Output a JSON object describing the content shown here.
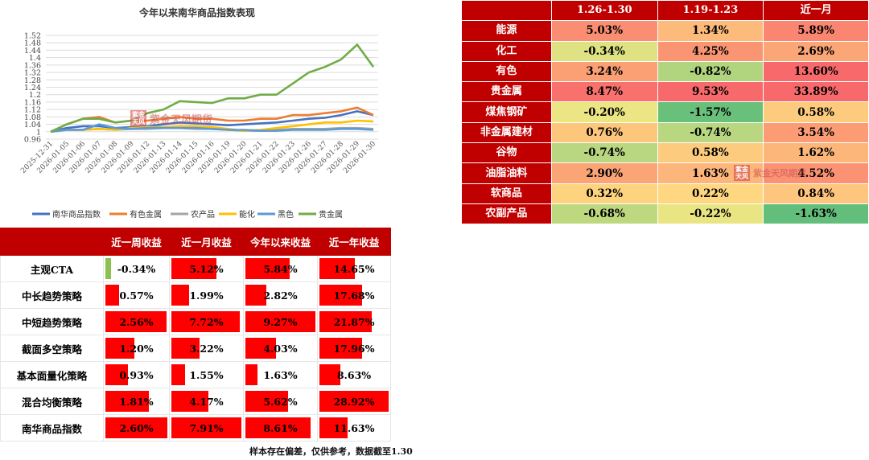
{
  "chart_data": [
    {
      "type": "line",
      "title": "今年以来南华商品指数表现",
      "x": [
        "2025-12-31",
        "2026-01-05",
        "2026-01-06",
        "2026-01-07",
        "2026-01-08",
        "2026-01-09",
        "2026-01-12",
        "2026-01-13",
        "2026-01-14",
        "2026-01-15",
        "2026-01-16",
        "2026-01-19",
        "2026-01-20",
        "2026-01-21",
        "2026-01-22",
        "2026-01-23",
        "2026-01-26",
        "2026-01-27",
        "2026-01-28",
        "2026-01-29",
        "2026-01-30"
      ],
      "yticks": [
        "0.96",
        "1",
        "1.04",
        "1.08",
        "1.12",
        "1.16",
        "1.2",
        "1.24",
        "1.28",
        "1.32",
        "1.36",
        "1.4",
        "1.44",
        "1.48",
        "1.52"
      ],
      "ylim": [
        0.96,
        1.52
      ],
      "grid": true,
      "legend_position": "bottom",
      "series": [
        {
          "name": "南华商品指数",
          "color": "#4472c4",
          "values": [
            1.0,
            1.02,
            1.03,
            1.03,
            1.02,
            1.025,
            1.03,
            1.04,
            1.05,
            1.045,
            1.04,
            1.035,
            1.04,
            1.045,
            1.05,
            1.06,
            1.07,
            1.075,
            1.09,
            1.11,
            1.09
          ]
        },
        {
          "name": "有色金属",
          "color": "#ed7d31",
          "values": [
            1.0,
            1.04,
            1.07,
            1.08,
            1.05,
            1.06,
            1.06,
            1.07,
            1.08,
            1.07,
            1.07,
            1.06,
            1.06,
            1.07,
            1.07,
            1.09,
            1.09,
            1.1,
            1.11,
            1.13,
            1.09
          ]
        },
        {
          "name": "农产品",
          "color": "#a5a5a5",
          "values": [
            1.0,
            1.01,
            1.01,
            1.015,
            1.01,
            1.015,
            1.015,
            1.02,
            1.02,
            1.015,
            1.015,
            1.01,
            1.005,
            1.005,
            1.01,
            1.015,
            1.015,
            1.015,
            1.02,
            1.02,
            1.015
          ]
        },
        {
          "name": "能化",
          "color": "#ffc000",
          "values": [
            1.0,
            1.01,
            1.01,
            1.015,
            1.01,
            1.02,
            1.025,
            1.025,
            1.03,
            1.03,
            1.025,
            1.015,
            1.005,
            1.01,
            1.02,
            1.03,
            1.04,
            1.05,
            1.05,
            1.06,
            1.055
          ]
        },
        {
          "name": "黑色",
          "color": "#5b9bd5",
          "values": [
            1.0,
            1.01,
            1.01,
            1.04,
            1.02,
            1.015,
            1.02,
            1.02,
            1.02,
            1.02,
            1.015,
            1.01,
            1.01,
            1.005,
            1.005,
            1.01,
            1.01,
            1.01,
            1.015,
            1.015,
            1.01
          ]
        },
        {
          "name": "贵金属",
          "color": "#70ad47",
          "values": [
            1.0,
            1.04,
            1.07,
            1.07,
            1.05,
            1.06,
            1.1,
            1.12,
            1.165,
            1.16,
            1.155,
            1.18,
            1.18,
            1.2,
            1.2,
            1.26,
            1.32,
            1.35,
            1.39,
            1.47,
            1.35
          ]
        }
      ]
    },
    {
      "type": "heatmap",
      "columns": [
        "",
        "1.26-1.30",
        "1.19-1.23",
        "近一月"
      ],
      "rows": [
        {
          "label": "能源",
          "values": [
            "5.03%",
            "1.34%",
            "5.89%"
          ],
          "numbers": [
            5.03,
            1.34,
            5.89
          ]
        },
        {
          "label": "化工",
          "values": [
            "-0.34%",
            "4.25%",
            "2.69%"
          ],
          "numbers": [
            -0.34,
            4.25,
            2.69
          ]
        },
        {
          "label": "有色",
          "values": [
            "3.24%",
            "-0.82%",
            "13.60%"
          ],
          "numbers": [
            3.24,
            -0.82,
            13.6
          ]
        },
        {
          "label": "贵金属",
          "values": [
            "8.47%",
            "9.53%",
            "33.89%"
          ],
          "numbers": [
            8.47,
            9.53,
            33.89
          ]
        },
        {
          "label": "煤焦钢矿",
          "values": [
            "-0.20%",
            "-1.57%",
            "0.58%"
          ],
          "numbers": [
            -0.2,
            -1.57,
            0.58
          ]
        },
        {
          "label": "非金属建材",
          "values": [
            "0.76%",
            "-0.74%",
            "3.54%"
          ],
          "numbers": [
            0.76,
            -0.74,
            3.54
          ]
        },
        {
          "label": "谷物",
          "values": [
            "-0.74%",
            "0.58%",
            "1.62%"
          ],
          "numbers": [
            -0.74,
            0.58,
            1.62
          ]
        },
        {
          "label": "油脂油料",
          "values": [
            "2.90%",
            "1.63%",
            "4.52%"
          ],
          "numbers": [
            2.9,
            1.63,
            4.52
          ]
        },
        {
          "label": "软商品",
          "values": [
            "0.32%",
            "0.22%",
            "0.84%"
          ],
          "numbers": [
            0.32,
            0.22,
            0.84
          ]
        },
        {
          "label": "农副产品",
          "values": [
            "-0.68%",
            "-0.22%",
            "-1.63%"
          ],
          "numbers": [
            -0.68,
            -0.22,
            -1.63
          ]
        }
      ],
      "colors": {
        "low": "#63be7b",
        "mid": "#ffeb84",
        "high": "#f8696b"
      }
    },
    {
      "type": "table",
      "columns": [
        "",
        "近一周收益",
        "近一月收益",
        "今年以来收益",
        "近一年收益"
      ],
      "rows": [
        {
          "label": "主观CTA",
          "values": [
            "-0.34%",
            "5.12%",
            "5.84%",
            "14.65%"
          ],
          "numbers": [
            -0.34,
            5.12,
            5.84,
            14.65
          ]
        },
        {
          "label": "中长趋势策略",
          "values": [
            "0.57%",
            "1.99%",
            "2.82%",
            "17.68%"
          ],
          "numbers": [
            0.57,
            1.99,
            2.82,
            17.68
          ]
        },
        {
          "label": "中短趋势策略",
          "values": [
            "2.56%",
            "7.72%",
            "9.27%",
            "21.87%"
          ],
          "numbers": [
            2.56,
            7.72,
            9.27,
            21.87
          ]
        },
        {
          "label": "截面多空策略",
          "values": [
            "1.20%",
            "3.22%",
            "4.03%",
            "17.96%"
          ],
          "numbers": [
            1.2,
            3.22,
            4.03,
            17.96
          ]
        },
        {
          "label": "基本面量化策略",
          "values": [
            "0.93%",
            "1.55%",
            "1.63%",
            "8.63%"
          ],
          "numbers": [
            0.93,
            1.55,
            1.63,
            8.63
          ]
        },
        {
          "label": "混合均衡策略",
          "values": [
            "1.81%",
            "4.17%",
            "5.62%",
            "28.92%"
          ],
          "numbers": [
            1.81,
            4.17,
            5.62,
            28.92
          ]
        },
        {
          "label": "南华商品指数",
          "values": [
            "2.60%",
            "7.91%",
            "8.61%",
            "11.63%"
          ],
          "numbers": [
            2.6,
            7.91,
            8.61,
            11.63
          ]
        }
      ],
      "bar_color": "#ff0000",
      "negative_bar_color": "#8cc152",
      "note": "样本存在偏差，仅供参考，数据截至1.30"
    }
  ],
  "watermark": {
    "text": "紫金天风期货",
    "seal_text": "紫金天风"
  }
}
